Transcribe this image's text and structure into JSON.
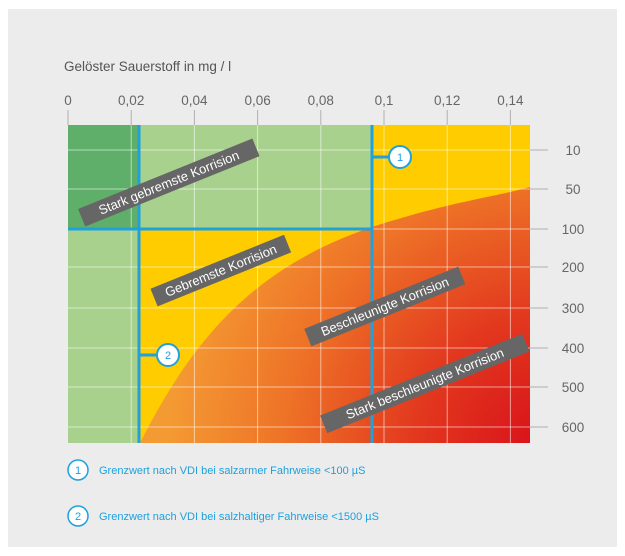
{
  "chart_data": {
    "type": "area",
    "title": "",
    "xlabel": "Gelöster Sauerstoff in mg / l",
    "x_ticks": [
      "0",
      "0,02",
      "0,04",
      "0,06",
      "0,08",
      "0,1",
      "0,12",
      "0,14"
    ],
    "y_ticks": [
      "10",
      "50",
      "100",
      "200",
      "300",
      "400",
      "500",
      "600"
    ],
    "xlim": [
      0,
      0.155
    ],
    "ylim_bands": [
      "10",
      "600"
    ],
    "grid": true,
    "regions": [
      {
        "name": "Stark gebremste Korrision",
        "color": "#5faf6a"
      },
      {
        "name": "Gebremste Korrision",
        "color": "#a9d18e"
      },
      {
        "name": "Beschleunigte Korrision",
        "color": "#ffcc00"
      },
      {
        "name": "Stark beschleunigte Korrision",
        "color": "#e01e1e"
      }
    ],
    "reference_lines": [
      {
        "marker": "1",
        "x": 0.1,
        "y": "100"
      },
      {
        "marker": "2",
        "x": 0.02
      }
    ],
    "legend": [
      {
        "number": "1",
        "text": "Grenzwert nach VDI bei salzarmer Fahrweise <100 µS"
      },
      {
        "number": "2",
        "text": "Grenzwert nach VDI bei salzhaltiger Fahrweise <1500 µS"
      }
    ],
    "colors": {
      "dark_green": "#5faf6a",
      "light_green": "#a9d18e",
      "yellow": "#ffcc00",
      "orange": "#f08a2e",
      "red": "#e01e1e",
      "limit_lines": "#1ea1dc",
      "label_bg": "#666666"
    }
  }
}
